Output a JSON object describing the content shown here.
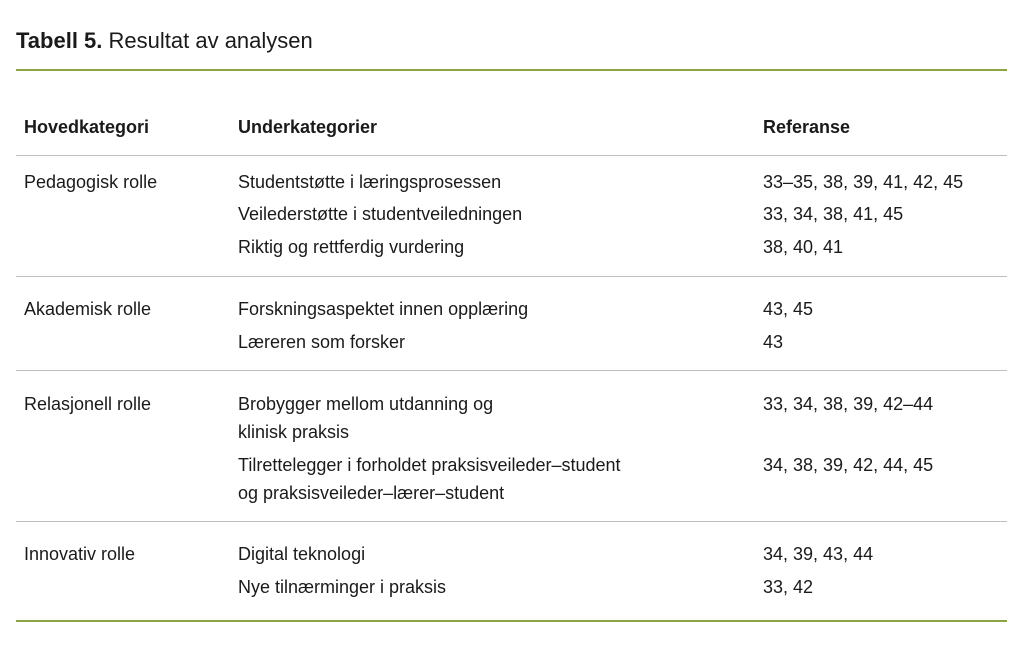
{
  "title": {
    "label": "Tabell 5.",
    "text": "Resultat av analysen"
  },
  "colors": {
    "accent_rule": "#8aa442",
    "divider": "#bdbdbd"
  },
  "headers": [
    "Hovedkategori",
    "Underkategorier",
    "Referanse"
  ],
  "groups": [
    {
      "category": "Pedagogisk rolle",
      "items": [
        {
          "sub": "Studentstøtte i læringsprosessen",
          "ref": "33–35, 38, 39, 41, 42, 45"
        },
        {
          "sub": "Veilederstøtte i studentveiledningen",
          "ref": "33, 34, 38, 41, 45"
        },
        {
          "sub": "Riktig og rettferdig vurdering",
          "ref": "38, 40, 41"
        }
      ]
    },
    {
      "category": "Akademisk rolle",
      "items": [
        {
          "sub": "Forskningsaspektet innen opplæring",
          "ref": "43, 45"
        },
        {
          "sub": "Læreren som forsker",
          "ref": "43"
        }
      ]
    },
    {
      "category": "Relasjonell rolle",
      "items": [
        {
          "sub": "Brobygger mellom utdanning og",
          "sub2": "klinisk praksis",
          "ref": "33, 34, 38, 39, 42–44"
        },
        {
          "sub": "Tilrettelegger i forholdet praksisveileder–student",
          "sub2": "og praksisveileder–lærer–student",
          "ref": "34, 38, 39, 42, 44, 45"
        }
      ]
    },
    {
      "category": "Innovativ rolle",
      "items": [
        {
          "sub": "Digital teknologi",
          "ref": "34, 39, 43, 44"
        },
        {
          "sub": "Nye tilnærminger i praksis",
          "ref": "33, 42"
        }
      ]
    }
  ]
}
